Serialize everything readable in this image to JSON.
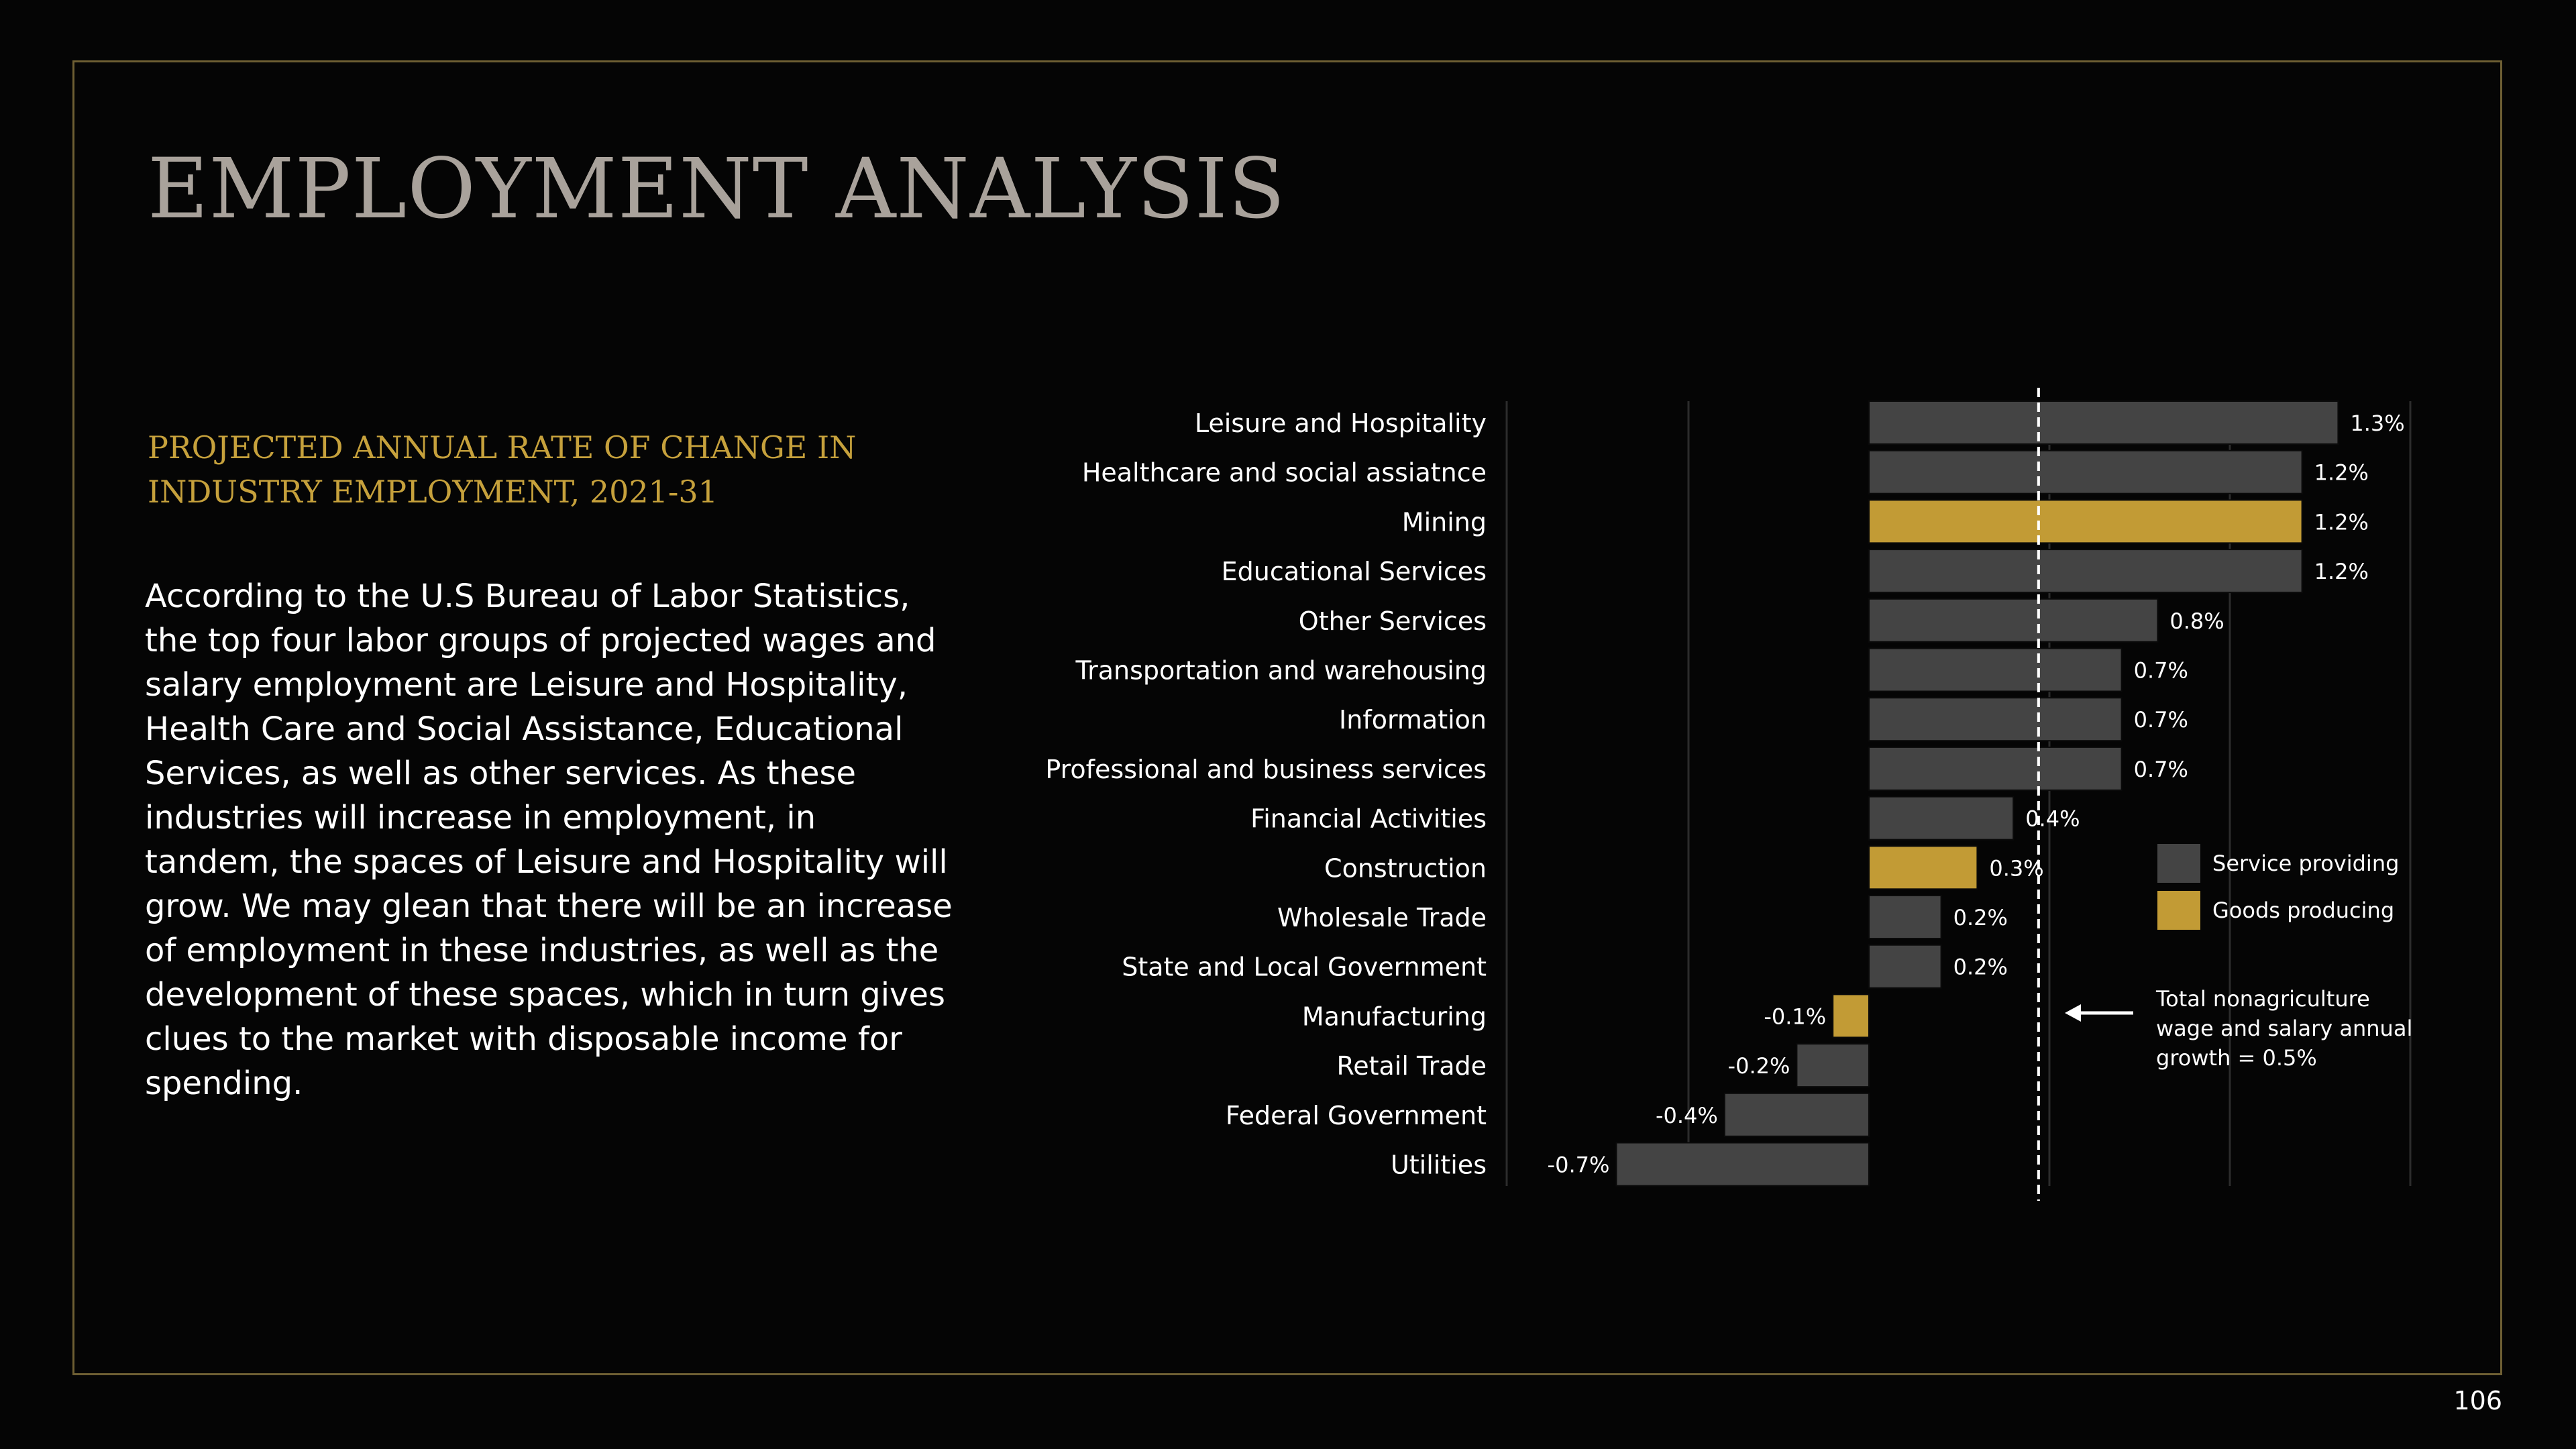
{
  "page": {
    "title": "EMPLOYMENT ANALYSIS",
    "subtitle": "PROJECTED ANNUAL RATE OF CHANGE IN INDUSTRY EMPLOYMENT, 2021-31",
    "body": "According to the U.S Bureau of Labor Statistics, the top four labor groups of projected wages and salary employment are Leisure and Hospitality, Health Care and Social Assistance, Educational Services, as well as other services. As these industries will increase in employment, in tandem, the spaces of Leisure and Hospitality will grow. We may glean that there will be an increase of employment in these industries, as well as the development of these spaces, which in turn gives clues to the market with disposable income for spending.",
    "page_number": "106"
  },
  "colors": {
    "service": "#444444",
    "goods": "#c29b35",
    "frame": "#6e5f33",
    "title": "#a9a29b"
  },
  "chart_data": {
    "type": "bar",
    "orientation": "horizontal",
    "categories": [
      "Leisure and Hospitality",
      "Healthcare and social assiatnce",
      "Mining",
      "Educational Services",
      "Other Services",
      "Transportation and warehousing",
      "Information",
      "Professional and business services",
      "Financial Activities",
      "Construction",
      "Wholesale Trade",
      "State and Local Government",
      "Manufacturing",
      "Retail Trade",
      "Federal Government",
      "Utilities"
    ],
    "values": [
      1.3,
      1.2,
      1.2,
      1.2,
      0.8,
      0.7,
      0.7,
      0.7,
      0.4,
      0.3,
      0.2,
      0.2,
      -0.1,
      -0.2,
      -0.4,
      -0.7
    ],
    "value_labels": [
      "1.3%",
      "1.2%",
      "1.2%",
      "1.2%",
      "0.8%",
      "0.7%",
      "0.7%",
      "0.7%",
      "0.4%",
      "0.3%",
      "0.2%",
      "0.2%",
      "-0.1%",
      "-0.2%",
      "-0.4%",
      "-0.7%"
    ],
    "groups": [
      "service",
      "service",
      "goods",
      "service",
      "service",
      "service",
      "service",
      "service",
      "service",
      "goods",
      "service",
      "service",
      "goods",
      "service",
      "service",
      "service"
    ],
    "xlim": [
      -1.0,
      1.5
    ],
    "gridlines_x": [
      -0.5,
      0.5,
      1.0,
      1.5
    ],
    "reference_line": {
      "value": 0.47
    },
    "legend": {
      "placement": "right",
      "entries": [
        {
          "group": "service",
          "label": "Service providing"
        },
        {
          "group": "goods",
          "label": "Goods producing"
        }
      ]
    },
    "annotation": {
      "lines": [
        "Total nonagriculture",
        "wage and salary annual",
        "growth = 0.5%"
      ]
    }
  }
}
